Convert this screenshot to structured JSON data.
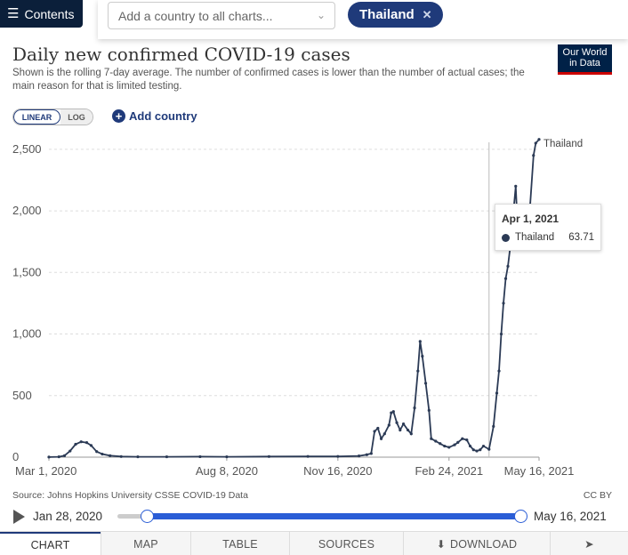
{
  "topbar": {
    "contents_label": "Contents",
    "country_placeholder": "Add a country to all charts...",
    "selected_country": "Thailand"
  },
  "header": {
    "title": "Daily new confirmed COVID-19 cases",
    "subtitle": "Shown is the rolling 7-day average. The number of confirmed cases is lower than the number of actual cases; the main reason for that is limited testing.",
    "logo_line1": "Our World",
    "logo_line2": "in Data"
  },
  "controls": {
    "linear_label": "LINEAR",
    "log_label": "LOG",
    "add_country_label": "Add country"
  },
  "tooltip": {
    "date": "Apr 1, 2021",
    "series": "Thailand",
    "value": "63.71"
  },
  "footer": {
    "source": "Source: Johns Hopkins University CSSE COVID-19 Data",
    "license": "CC BY"
  },
  "timeline": {
    "start_label": "Jan 28, 2020",
    "end_label": "May 16, 2021"
  },
  "tabs": {
    "chart": "CHART",
    "map": "MAP",
    "table": "TABLE",
    "sources": "SOURCES",
    "download": "DOWNLOAD"
  },
  "colors": {
    "series": "#2b3a55",
    "accent": "#1f3a7a",
    "slider": "#2a5dd6"
  },
  "chart_data": {
    "type": "line",
    "title": "Daily new confirmed COVID-19 cases",
    "xlabel": "",
    "ylabel": "",
    "ylim": [
      0,
      2600
    ],
    "y_ticks": [
      0,
      500,
      1000,
      1500,
      2000,
      2500
    ],
    "y_tick_labels": [
      "0",
      "500",
      "1,000",
      "1,500",
      "2,000",
      "2,500"
    ],
    "x_ticks": [
      "2020-03-01",
      "2020-08-08",
      "2020-11-16",
      "2021-02-24",
      "2021-05-16"
    ],
    "x_tick_labels": [
      "Mar 1, 2020",
      "Aug 8, 2020",
      "Nov 16, 2020",
      "Feb 24, 2021",
      "May 16, 2021"
    ],
    "xlim": [
      "2020-03-01",
      "2021-05-16"
    ],
    "grid": true,
    "hover_date": "2021-04-01",
    "series": [
      {
        "name": "Thailand",
        "points": [
          [
            "2020-03-01",
            1
          ],
          [
            "2020-03-10",
            3
          ],
          [
            "2020-03-15",
            12
          ],
          [
            "2020-03-20",
            50
          ],
          [
            "2020-03-25",
            105
          ],
          [
            "2020-03-30",
            125
          ],
          [
            "2020-04-04",
            118
          ],
          [
            "2020-04-08",
            95
          ],
          [
            "2020-04-13",
            45
          ],
          [
            "2020-04-18",
            25
          ],
          [
            "2020-04-25",
            12
          ],
          [
            "2020-05-05",
            5
          ],
          [
            "2020-05-20",
            3
          ],
          [
            "2020-06-15",
            3
          ],
          [
            "2020-07-15",
            4
          ],
          [
            "2020-08-08",
            3
          ],
          [
            "2020-09-15",
            5
          ],
          [
            "2020-10-20",
            6
          ],
          [
            "2020-11-16",
            6
          ],
          [
            "2020-12-05",
            10
          ],
          [
            "2020-12-12",
            20
          ],
          [
            "2020-12-16",
            30
          ],
          [
            "2020-12-19",
            210
          ],
          [
            "2020-12-22",
            235
          ],
          [
            "2020-12-25",
            150
          ],
          [
            "2020-12-28",
            190
          ],
          [
            "2021-01-01",
            260
          ],
          [
            "2021-01-03",
            360
          ],
          [
            "2021-01-05",
            370
          ],
          [
            "2021-01-08",
            280
          ],
          [
            "2021-01-11",
            220
          ],
          [
            "2021-01-14",
            270
          ],
          [
            "2021-01-18",
            220
          ],
          [
            "2021-01-21",
            190
          ],
          [
            "2021-01-24",
            400
          ],
          [
            "2021-01-27",
            700
          ],
          [
            "2021-01-29",
            940
          ],
          [
            "2021-01-31",
            820
          ],
          [
            "2021-02-03",
            600
          ],
          [
            "2021-02-06",
            380
          ],
          [
            "2021-02-08",
            150
          ],
          [
            "2021-02-12",
            130
          ],
          [
            "2021-02-16",
            110
          ],
          [
            "2021-02-20",
            90
          ],
          [
            "2021-02-24",
            80
          ],
          [
            "2021-03-01",
            100
          ],
          [
            "2021-03-04",
            120
          ],
          [
            "2021-03-08",
            150
          ],
          [
            "2021-03-12",
            140
          ],
          [
            "2021-03-15",
            90
          ],
          [
            "2021-03-18",
            60
          ],
          [
            "2021-03-21",
            50
          ],
          [
            "2021-03-24",
            60
          ],
          [
            "2021-03-27",
            90
          ],
          [
            "2021-04-01",
            64
          ],
          [
            "2021-04-05",
            250
          ],
          [
            "2021-04-08",
            520
          ],
          [
            "2021-04-10",
            700
          ],
          [
            "2021-04-12",
            1000
          ],
          [
            "2021-04-14",
            1250
          ],
          [
            "2021-04-16",
            1450
          ],
          [
            "2021-04-18",
            1550
          ],
          [
            "2021-04-20",
            1700
          ],
          [
            "2021-04-23",
            2000
          ],
          [
            "2021-04-25",
            2200
          ],
          [
            "2021-04-27",
            1800
          ],
          [
            "2021-04-29",
            2000
          ],
          [
            "2021-05-01",
            1750
          ],
          [
            "2021-05-04",
            1900
          ],
          [
            "2021-05-08",
            2050
          ],
          [
            "2021-05-11",
            2450
          ],
          [
            "2021-05-13",
            2550
          ],
          [
            "2021-05-16",
            2580
          ]
        ]
      }
    ]
  }
}
